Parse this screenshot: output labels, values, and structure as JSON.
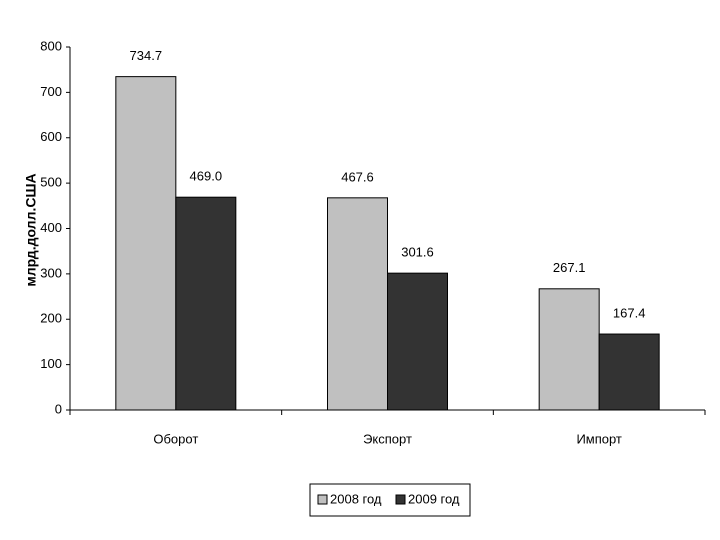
{
  "chart_data": {
    "type": "bar",
    "y_label": "млрд.долл.США",
    "categories": [
      "Оборот",
      "Экспорт",
      "Импорт"
    ],
    "series": [
      {
        "name": "2008 год",
        "color": "#c0c0c0",
        "values": [
          734.7,
          467.6,
          267.1
        ],
        "value_labels": [
          "734.7",
          "467.6",
          "267.1"
        ]
      },
      {
        "name": "2009 год",
        "color": "#333333",
        "values": [
          469.0,
          301.6,
          167.4
        ],
        "value_labels": [
          "469.0",
          "301.6",
          "167.4"
        ]
      }
    ],
    "ylim": [
      0,
      800
    ],
    "yticks": [
      0,
      100,
      200,
      300,
      400,
      500,
      600,
      700,
      800
    ],
    "grid": false,
    "legend": "bottom"
  }
}
